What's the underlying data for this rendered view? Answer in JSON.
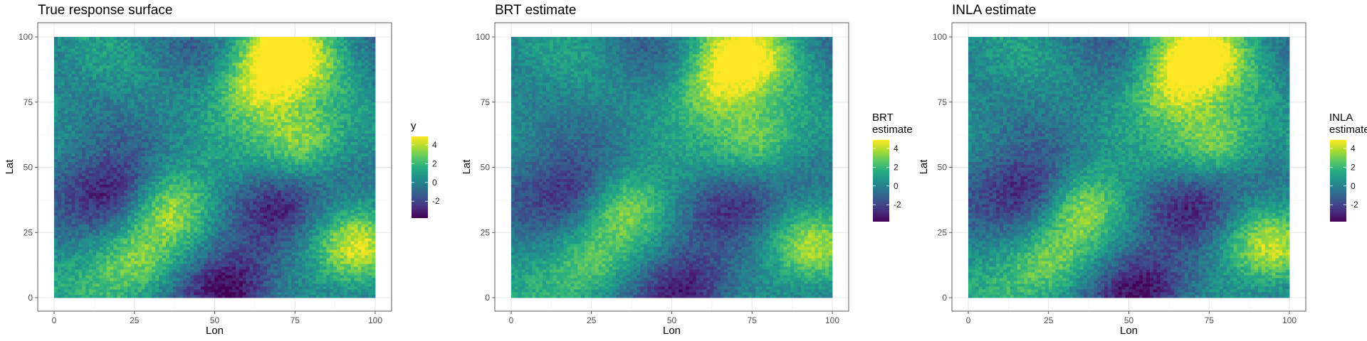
{
  "chart_data": [
    {
      "type": "heatmap",
      "title": "True response surface",
      "xlabel": "Lon",
      "ylabel": "Lat",
      "xlim": [
        0,
        100
      ],
      "ylim": [
        0,
        100
      ],
      "x_ticks": [
        "0",
        "25",
        "50",
        "75",
        "100"
      ],
      "y_ticks": [
        "0",
        "25",
        "50",
        "75",
        "100"
      ],
      "legend_title": [
        "y"
      ],
      "legend_ticks": [
        "4",
        "2",
        "0",
        "-2"
      ],
      "legend_placement": "right",
      "color_range": [
        -3.8,
        4.9
      ],
      "colormap": "viridis",
      "grid": true,
      "smooth_factor": 1.0,
      "hotspots": [
        {
          "lon": 72,
          "lat": 95,
          "value": 4.8
        },
        {
          "lon": 63,
          "lat": 80,
          "value": 4.2
        },
        {
          "lon": 78,
          "lat": 60,
          "value": 4.0
        },
        {
          "lon": 95,
          "lat": 20,
          "value": 3.8
        },
        {
          "lon": 35,
          "lat": 35,
          "value": 3.6
        },
        {
          "lon": 25,
          "lat": 12,
          "value": 3.4
        },
        {
          "lon": 20,
          "lat": 40,
          "value": -3.5
        },
        {
          "lon": 55,
          "lat": 3,
          "value": -3.8
        },
        {
          "lon": 70,
          "lat": 35,
          "value": -2.8
        }
      ]
    },
    {
      "type": "heatmap",
      "title": "BRT estimate",
      "xlabel": "Lon",
      "ylabel": "Lat",
      "xlim": [
        0,
        100
      ],
      "ylim": [
        0,
        100
      ],
      "x_ticks": [
        "0",
        "25",
        "50",
        "75",
        "100"
      ],
      "y_ticks": [
        "0",
        "25",
        "50",
        "75",
        "100"
      ],
      "legend_title": [
        "BRT",
        "estimate"
      ],
      "legend_ticks": [
        "4",
        "2",
        "0",
        "-2"
      ],
      "legend_placement": "right",
      "color_range": [
        -3.8,
        4.9
      ],
      "colormap": "viridis",
      "grid": true,
      "smooth_factor": 0.85,
      "hotspots": [
        {
          "lon": 72,
          "lat": 95,
          "value": 4.2
        },
        {
          "lon": 63,
          "lat": 80,
          "value": 3.8
        },
        {
          "lon": 78,
          "lat": 60,
          "value": 3.5
        },
        {
          "lon": 95,
          "lat": 20,
          "value": 3.2
        },
        {
          "lon": 35,
          "lat": 35,
          "value": 3.0
        },
        {
          "lon": 25,
          "lat": 12,
          "value": 2.8
        },
        {
          "lon": 20,
          "lat": 40,
          "value": -2.9
        },
        {
          "lon": 55,
          "lat": 3,
          "value": -3.2
        },
        {
          "lon": 70,
          "lat": 35,
          "value": -2.4
        }
      ]
    },
    {
      "type": "heatmap",
      "title": "INLA estimate",
      "xlabel": "Lon",
      "ylabel": "Lat",
      "xlim": [
        0,
        100
      ],
      "ylim": [
        0,
        100
      ],
      "x_ticks": [
        "0",
        "25",
        "50",
        "75",
        "100"
      ],
      "y_ticks": [
        "0",
        "25",
        "50",
        "75",
        "100"
      ],
      "legend_title": [
        "INLA",
        "estimate"
      ],
      "legend_ticks": [
        "4",
        "2",
        "0",
        "-2"
      ],
      "legend_placement": "right",
      "color_range": [
        -3.8,
        4.9
      ],
      "colormap": "viridis",
      "grid": true,
      "smooth_factor": 0.95,
      "hotspots": [
        {
          "lon": 72,
          "lat": 95,
          "value": 4.6
        },
        {
          "lon": 63,
          "lat": 80,
          "value": 4.0
        },
        {
          "lon": 78,
          "lat": 60,
          "value": 3.8
        },
        {
          "lon": 95,
          "lat": 20,
          "value": 3.6
        },
        {
          "lon": 35,
          "lat": 35,
          "value": 3.4
        },
        {
          "lon": 25,
          "lat": 12,
          "value": 3.2
        },
        {
          "lon": 20,
          "lat": 40,
          "value": -3.3
        },
        {
          "lon": 55,
          "lat": 3,
          "value": -3.6
        },
        {
          "lon": 70,
          "lat": 35,
          "value": -2.7
        }
      ]
    }
  ]
}
